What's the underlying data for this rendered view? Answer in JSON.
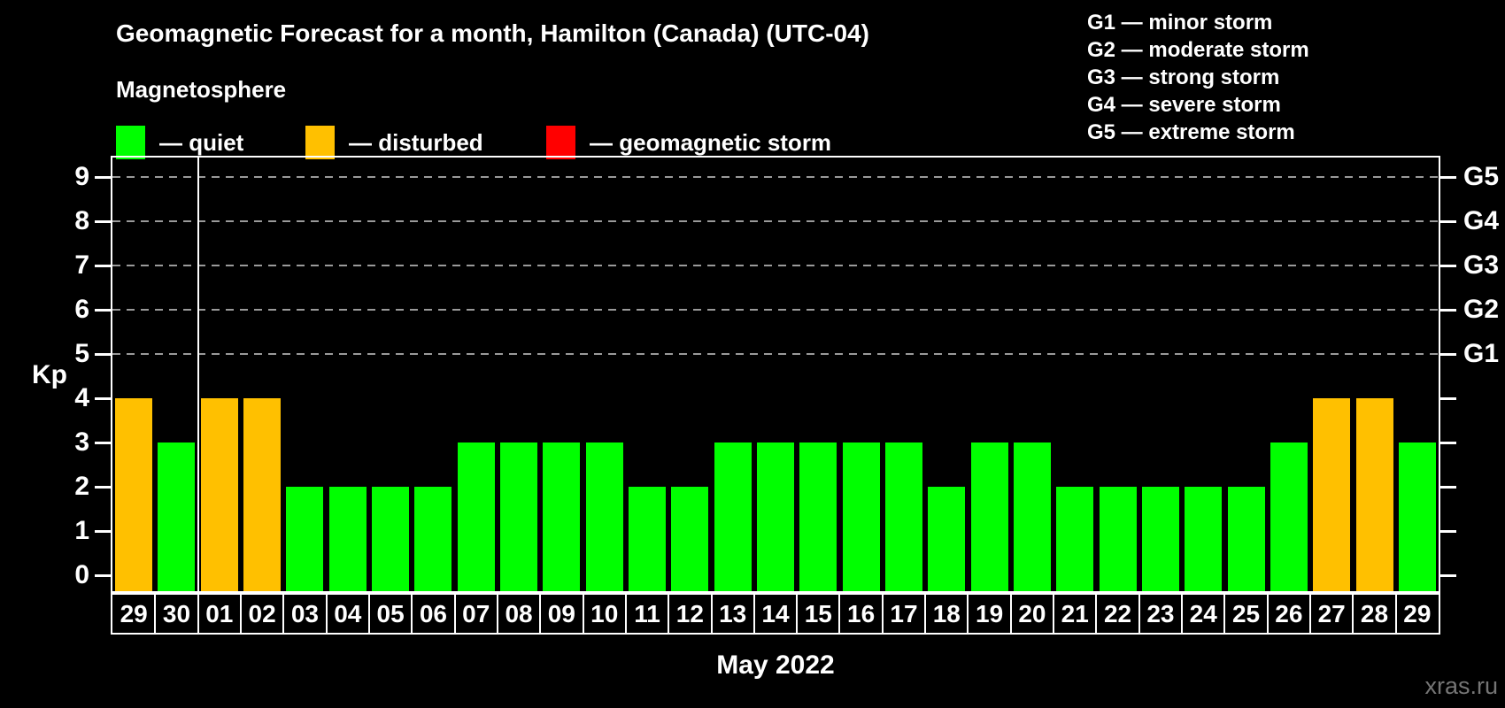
{
  "page": {
    "background": "#000000"
  },
  "header": {
    "title": "Geomagnetic Forecast for a month, Hamilton (Canada) (UTC-04)",
    "subtitle": "Magnetosphere"
  },
  "legend": {
    "items": [
      {
        "status": "quiet",
        "label": "— quiet",
        "color": "#00ff00"
      },
      {
        "status": "disturbed",
        "label": "— disturbed",
        "color": "#ffc000"
      },
      {
        "status": "storm",
        "label": "— geomagnetic storm",
        "color": "#ff0000"
      }
    ]
  },
  "storm_scale_legend": {
    "items": [
      "G1 — minor storm",
      "G2 — moderate storm",
      "G3 — strong storm",
      "G4 — severe storm",
      "G5 — extreme storm"
    ]
  },
  "footer": {
    "month_label": "May 2022",
    "watermark": "xras.ru"
  },
  "chart_data": {
    "type": "bar",
    "title": "Geomagnetic Forecast for a month, Hamilton (Canada) (UTC-04)",
    "xlabel": "May 2022",
    "ylabel": "Kp",
    "ylim": [
      0,
      9.5
    ],
    "yticks": [
      0,
      1,
      2,
      3,
      4,
      5,
      6,
      7,
      8,
      9
    ],
    "gridlines_at_kp": [
      5,
      6,
      7,
      8,
      9
    ],
    "grid": "dashed-horizontal",
    "legend_position": "top-left",
    "right_axis": [
      {
        "label": "G1",
        "kp": 5
      },
      {
        "label": "G2",
        "kp": 6
      },
      {
        "label": "G3",
        "kp": 7
      },
      {
        "label": "G4",
        "kp": 8
      },
      {
        "label": "G5",
        "kp": 9
      }
    ],
    "categories": [
      "29",
      "30",
      "01",
      "02",
      "03",
      "04",
      "05",
      "06",
      "07",
      "08",
      "09",
      "10",
      "11",
      "12",
      "13",
      "14",
      "15",
      "16",
      "17",
      "18",
      "19",
      "20",
      "21",
      "22",
      "23",
      "24",
      "25",
      "26",
      "27",
      "28",
      "29"
    ],
    "values": [
      4,
      3,
      4,
      4,
      2,
      2,
      2,
      2,
      3,
      3,
      3,
      3,
      2,
      2,
      3,
      3,
      3,
      3,
      3,
      2,
      3,
      3,
      2,
      2,
      2,
      2,
      2,
      3,
      4,
      4,
      3
    ],
    "statuses": [
      "disturbed",
      "quiet",
      "disturbed",
      "disturbed",
      "quiet",
      "quiet",
      "quiet",
      "quiet",
      "quiet",
      "quiet",
      "quiet",
      "quiet",
      "quiet",
      "quiet",
      "quiet",
      "quiet",
      "quiet",
      "quiet",
      "quiet",
      "quiet",
      "quiet",
      "quiet",
      "quiet",
      "quiet",
      "quiet",
      "quiet",
      "quiet",
      "quiet",
      "disturbed",
      "disturbed",
      "quiet"
    ],
    "status_colors": {
      "quiet": "#00ff00",
      "disturbed": "#ffc000",
      "storm": "#ff0000"
    },
    "month_separator_after_index": 1
  }
}
